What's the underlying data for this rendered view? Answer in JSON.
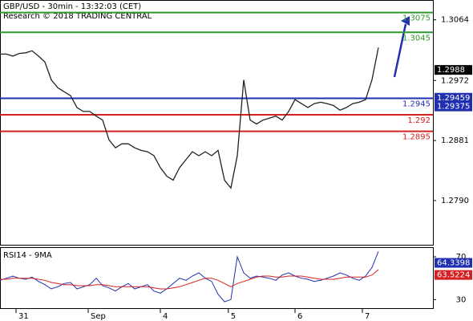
{
  "chart_data": [
    {
      "type": "line",
      "title": "GBP/USD - 30min - 13:32:03 (CET)",
      "subtitle": "Research © 2018 TRADING CENTRAL",
      "values": [
        1.3012,
        1.3012,
        1.3009,
        1.3013,
        1.3014,
        1.3017,
        1.3009,
        1.3,
        1.2973,
        1.2961,
        1.2955,
        1.2949,
        1.2931,
        1.2925,
        1.2925,
        1.2918,
        1.2912,
        1.2882,
        1.287,
        1.2876,
        1.2876,
        1.287,
        1.2866,
        1.2864,
        1.2858,
        1.284,
        1.2827,
        1.2821,
        1.284,
        1.2852,
        1.2864,
        1.2858,
        1.2864,
        1.2858,
        1.2866,
        1.2821,
        1.2809,
        1.2858,
        1.2973,
        1.2912,
        1.2906,
        1.2912,
        1.2915,
        1.2918,
        1.2912,
        1.2925,
        1.2943,
        1.2937,
        1.2931,
        1.2937,
        1.2939,
        1.2937,
        1.2934,
        1.2927,
        1.2931,
        1.2937,
        1.2939,
        1.2943,
        1.2973,
        1.3022
      ],
      "color": "#222222",
      "xlim": [
        0,
        67.5
      ],
      "xticks": [
        {
          "value": 2.5,
          "label": "31"
        },
        {
          "value": 13.75,
          "label": "Sep"
        },
        {
          "value": 25,
          "label": "4"
        },
        {
          "value": 35.6,
          "label": "5"
        },
        {
          "value": 46,
          "label": "6"
        },
        {
          "value": 56.5,
          "label": "7"
        }
      ],
      "ylim": [
        1.2723,
        1.3094
      ],
      "yticks": [
        1.3064,
        1.2972,
        1.2881,
        1.279
      ],
      "yticks_labels": [
        "1.3064",
        "1.2972",
        "1.2881",
        "1.2790"
      ],
      "levels": [
        {
          "value": 1.3075,
          "label": "1.3075",
          "color": "#2e9a2e"
        },
        {
          "value": 1.3045,
          "label": "1.3045",
          "color": "#2e9a2e"
        },
        {
          "value": 1.2945,
          "label": "1.2945",
          "color": "#1f2fb0"
        },
        {
          "value": 1.292,
          "label": "1.292",
          "color": "#d42020"
        },
        {
          "value": 1.2895,
          "label": "1.2895",
          "color": "#d42020"
        }
      ],
      "price_labels": [
        {
          "value": 1.2988,
          "label": "1.2988",
          "color": "#000000"
        },
        {
          "value": 1.29459,
          "label": "1.29459",
          "color": "#1f2fb0"
        },
        {
          "value": 1.29375,
          "label": "1.29375",
          "color": "#1f2fb0"
        }
      ]
    },
    {
      "type": "line",
      "title": "RSI14 - 9MA",
      "series": [
        {
          "color": "#1f2fb0",
          "values": [
            48,
            50,
            52,
            50,
            49,
            51,
            47,
            44,
            40,
            42,
            45,
            46,
            40,
            42,
            44,
            50,
            43,
            41,
            38,
            42,
            45,
            40,
            42,
            44,
            38,
            36,
            40,
            45,
            50,
            48,
            52,
            55,
            50,
            47,
            35,
            28,
            30,
            70,
            55,
            50,
            52,
            51,
            50,
            48,
            53,
            55,
            52,
            50,
            49,
            47,
            48,
            50,
            52,
            55,
            53,
            50,
            48,
            52,
            60,
            75
          ]
        },
        {
          "color": "#d42020",
          "values": [
            49,
            49,
            50,
            50,
            50,
            50,
            49,
            48,
            46,
            45,
            44,
            44,
            43,
            43,
            43,
            44,
            44,
            43,
            42,
            42,
            42,
            42,
            42,
            42,
            41,
            40,
            40,
            41,
            42,
            44,
            46,
            48,
            50,
            50,
            48,
            45,
            42,
            45,
            47,
            49,
            51,
            52,
            52,
            51,
            51,
            52,
            52,
            52,
            51,
            50,
            49,
            49,
            49,
            50,
            51,
            51,
            51,
            51,
            53,
            58
          ]
        }
      ],
      "ylim": [
        22,
        79
      ],
      "yticks": [
        70,
        30
      ],
      "value_boxes": [
        {
          "value": 64.3398,
          "label": "64.3398",
          "color": "#1f2fb0"
        },
        {
          "value": 63.5224,
          "label": "63.5224",
          "color": "#d42020"
        }
      ]
    }
  ]
}
